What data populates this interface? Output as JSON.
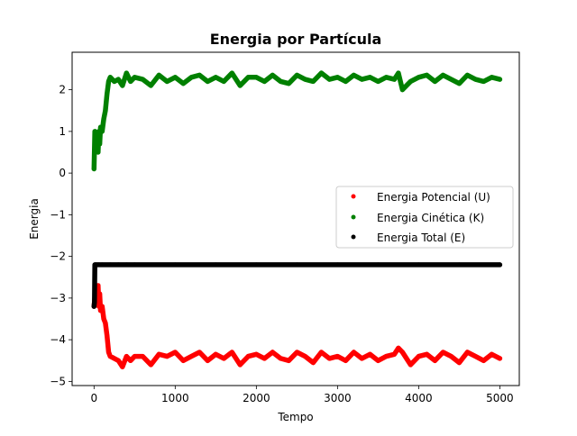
{
  "chart_data": {
    "type": "scatter",
    "title": "Energia por Partícula",
    "xlabel": "Tempo",
    "ylabel": "Energia",
    "xlim": [
      -270,
      5240
    ],
    "ylim": [
      -5.1,
      2.9
    ],
    "xticks": [
      0,
      1000,
      2000,
      3000,
      4000,
      5000
    ],
    "xtick_labels": [
      "0",
      "1000",
      "2000",
      "3000",
      "4000",
      "5000"
    ],
    "yticks": [
      -5,
      -4,
      -3,
      -2,
      -1,
      0,
      1,
      2
    ],
    "ytick_labels": [
      "−5",
      "−4",
      "−3",
      "−2",
      "−1",
      "0",
      "1",
      "2"
    ],
    "grid": false,
    "legend_position": "center-right",
    "series": [
      {
        "name": "Energia Potencial (U)",
        "color": "#ff0000",
        "x": [
          0,
          10,
          20,
          30,
          40,
          50,
          60,
          70,
          80,
          100,
          120,
          140,
          160,
          180,
          200,
          250,
          300,
          350,
          400,
          450,
          500,
          600,
          700,
          800,
          900,
          1000,
          1100,
          1200,
          1300,
          1400,
          1500,
          1600,
          1700,
          1800,
          1900,
          2000,
          2100,
          2200,
          2300,
          2400,
          2500,
          2600,
          2700,
          2800,
          2900,
          3000,
          3100,
          3200,
          3300,
          3400,
          3500,
          3600,
          3700,
          3750,
          3800,
          3900,
          4000,
          4100,
          4200,
          4300,
          4400,
          4500,
          4600,
          4700,
          4800,
          4900,
          5000
        ],
        "y": [
          -3.2,
          -3.0,
          -3.1,
          -2.8,
          -3.0,
          -2.7,
          -3.2,
          -2.9,
          -3.3,
          -3.2,
          -3.5,
          -3.6,
          -3.9,
          -4.3,
          -4.4,
          -4.45,
          -4.5,
          -4.65,
          -4.4,
          -4.5,
          -4.4,
          -4.4,
          -4.6,
          -4.35,
          -4.4,
          -4.3,
          -4.5,
          -4.4,
          -4.3,
          -4.5,
          -4.35,
          -4.45,
          -4.3,
          -4.6,
          -4.4,
          -4.35,
          -4.45,
          -4.3,
          -4.45,
          -4.5,
          -4.3,
          -4.4,
          -4.55,
          -4.3,
          -4.45,
          -4.4,
          -4.5,
          -4.3,
          -4.45,
          -4.35,
          -4.5,
          -4.4,
          -4.35,
          -4.2,
          -4.3,
          -4.6,
          -4.4,
          -4.35,
          -4.5,
          -4.3,
          -4.4,
          -4.55,
          -4.3,
          -4.4,
          -4.5,
          -4.35,
          -4.45
        ]
      },
      {
        "name": "Energia Cinética (K)",
        "color": "#008000",
        "x": [
          0,
          10,
          20,
          30,
          40,
          50,
          60,
          70,
          80,
          100,
          120,
          140,
          160,
          180,
          200,
          250,
          300,
          350,
          400,
          450,
          500,
          600,
          700,
          800,
          900,
          1000,
          1100,
          1200,
          1300,
          1400,
          1500,
          1600,
          1700,
          1800,
          1900,
          2000,
          2100,
          2200,
          2300,
          2400,
          2500,
          2600,
          2700,
          2800,
          2900,
          3000,
          3100,
          3200,
          3300,
          3400,
          3500,
          3600,
          3700,
          3750,
          3800,
          3900,
          4000,
          4100,
          4200,
          4300,
          4400,
          4500,
          4600,
          4700,
          4800,
          4900,
          5000
        ],
        "y": [
          0.1,
          1.0,
          0.8,
          0.6,
          0.9,
          0.5,
          1.0,
          0.7,
          1.1,
          1.0,
          1.3,
          1.5,
          1.9,
          2.2,
          2.3,
          2.2,
          2.25,
          2.1,
          2.4,
          2.2,
          2.3,
          2.25,
          2.1,
          2.35,
          2.2,
          2.3,
          2.15,
          2.3,
          2.35,
          2.2,
          2.3,
          2.2,
          2.4,
          2.1,
          2.3,
          2.3,
          2.2,
          2.35,
          2.2,
          2.15,
          2.35,
          2.25,
          2.2,
          2.4,
          2.25,
          2.3,
          2.2,
          2.35,
          2.25,
          2.3,
          2.2,
          2.3,
          2.25,
          2.4,
          2.0,
          2.2,
          2.3,
          2.35,
          2.2,
          2.35,
          2.25,
          2.15,
          2.35,
          2.25,
          2.2,
          2.3,
          2.25
        ]
      },
      {
        "name": "Energia Total (E)",
        "color": "#000000",
        "x": [
          0,
          5,
          10,
          20,
          40,
          60,
          100,
          200,
          300,
          400,
          500,
          1000,
          1500,
          2000,
          2500,
          3000,
          3500,
          4000,
          4500,
          5000
        ],
        "y": [
          -3.2,
          -3.1,
          -2.2,
          -2.2,
          -2.2,
          -2.2,
          -2.2,
          -2.2,
          -2.2,
          -2.2,
          -2.2,
          -2.2,
          -2.2,
          -2.2,
          -2.2,
          -2.2,
          -2.2,
          -2.2,
          -2.2,
          -2.2
        ]
      }
    ]
  }
}
